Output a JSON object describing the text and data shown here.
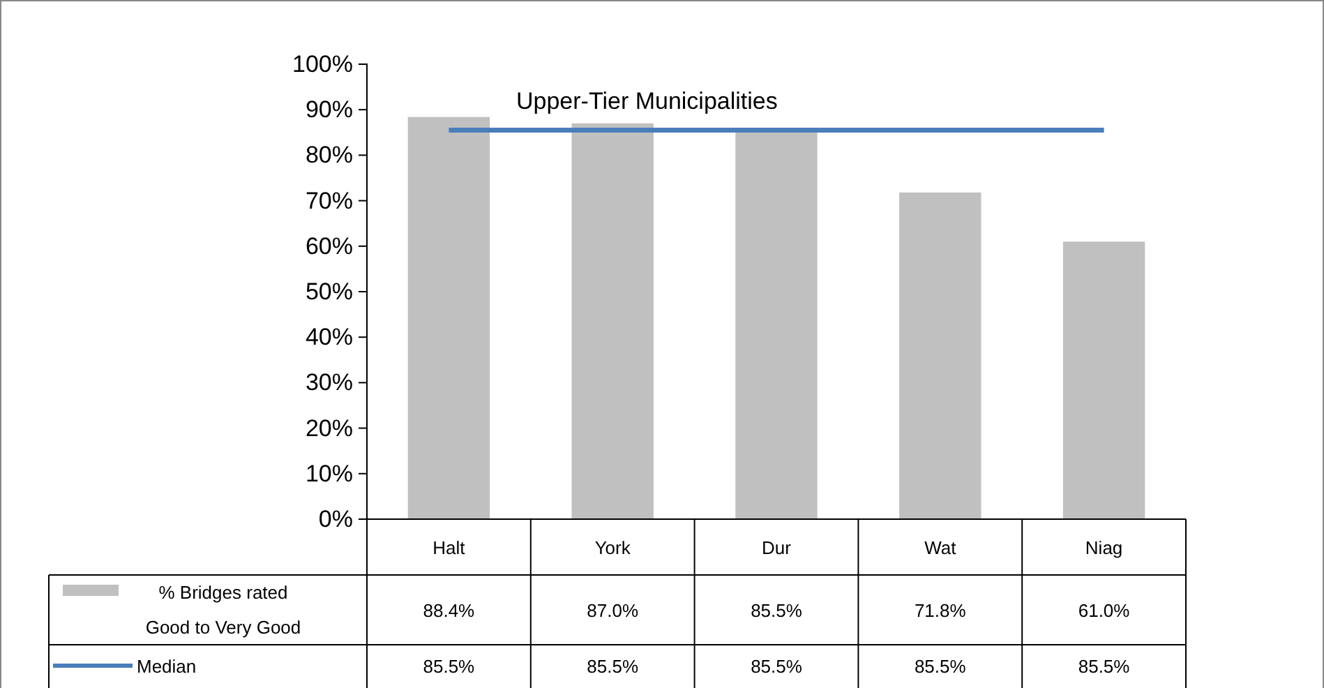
{
  "chart_data": {
    "type": "bar",
    "title": "Upper-Tier Municipalities",
    "categories": [
      "Halt",
      "York",
      "Dur",
      "Wat",
      "Niag"
    ],
    "series": [
      {
        "name": "% Bridges rated Good to Very Good",
        "color": "#c0c0c0",
        "values": [
          88.4,
          87.0,
          85.5,
          71.8,
          61.0
        ],
        "value_labels": [
          "88.4%",
          "87.0%",
          "85.5%",
          "71.8%",
          "61.0%"
        ]
      },
      {
        "name": "Median",
        "type": "line",
        "color": "#4a7ebb",
        "values": [
          85.5,
          85.5,
          85.5,
          85.5,
          85.5
        ],
        "value_labels": [
          "85.5%",
          "85.5%",
          "85.5%",
          "85.5%",
          "85.5%"
        ]
      }
    ],
    "ylim": [
      0,
      100
    ],
    "yticks": [
      {
        "value": 0,
        "label": "0%"
      },
      {
        "value": 10,
        "label": "10%"
      },
      {
        "value": 20,
        "label": "20%"
      },
      {
        "value": 30,
        "label": "30%"
      },
      {
        "value": 40,
        "label": "40%"
      },
      {
        "value": 50,
        "label": "50%"
      },
      {
        "value": 60,
        "label": "60%"
      },
      {
        "value": 70,
        "label": "70%"
      },
      {
        "value": 80,
        "label": "80%"
      },
      {
        "value": 90,
        "label": "90%"
      },
      {
        "value": 100,
        "label": "100%"
      }
    ],
    "grid": false,
    "legend": "bottom left",
    "line_style": "solid",
    "marker": "none"
  }
}
